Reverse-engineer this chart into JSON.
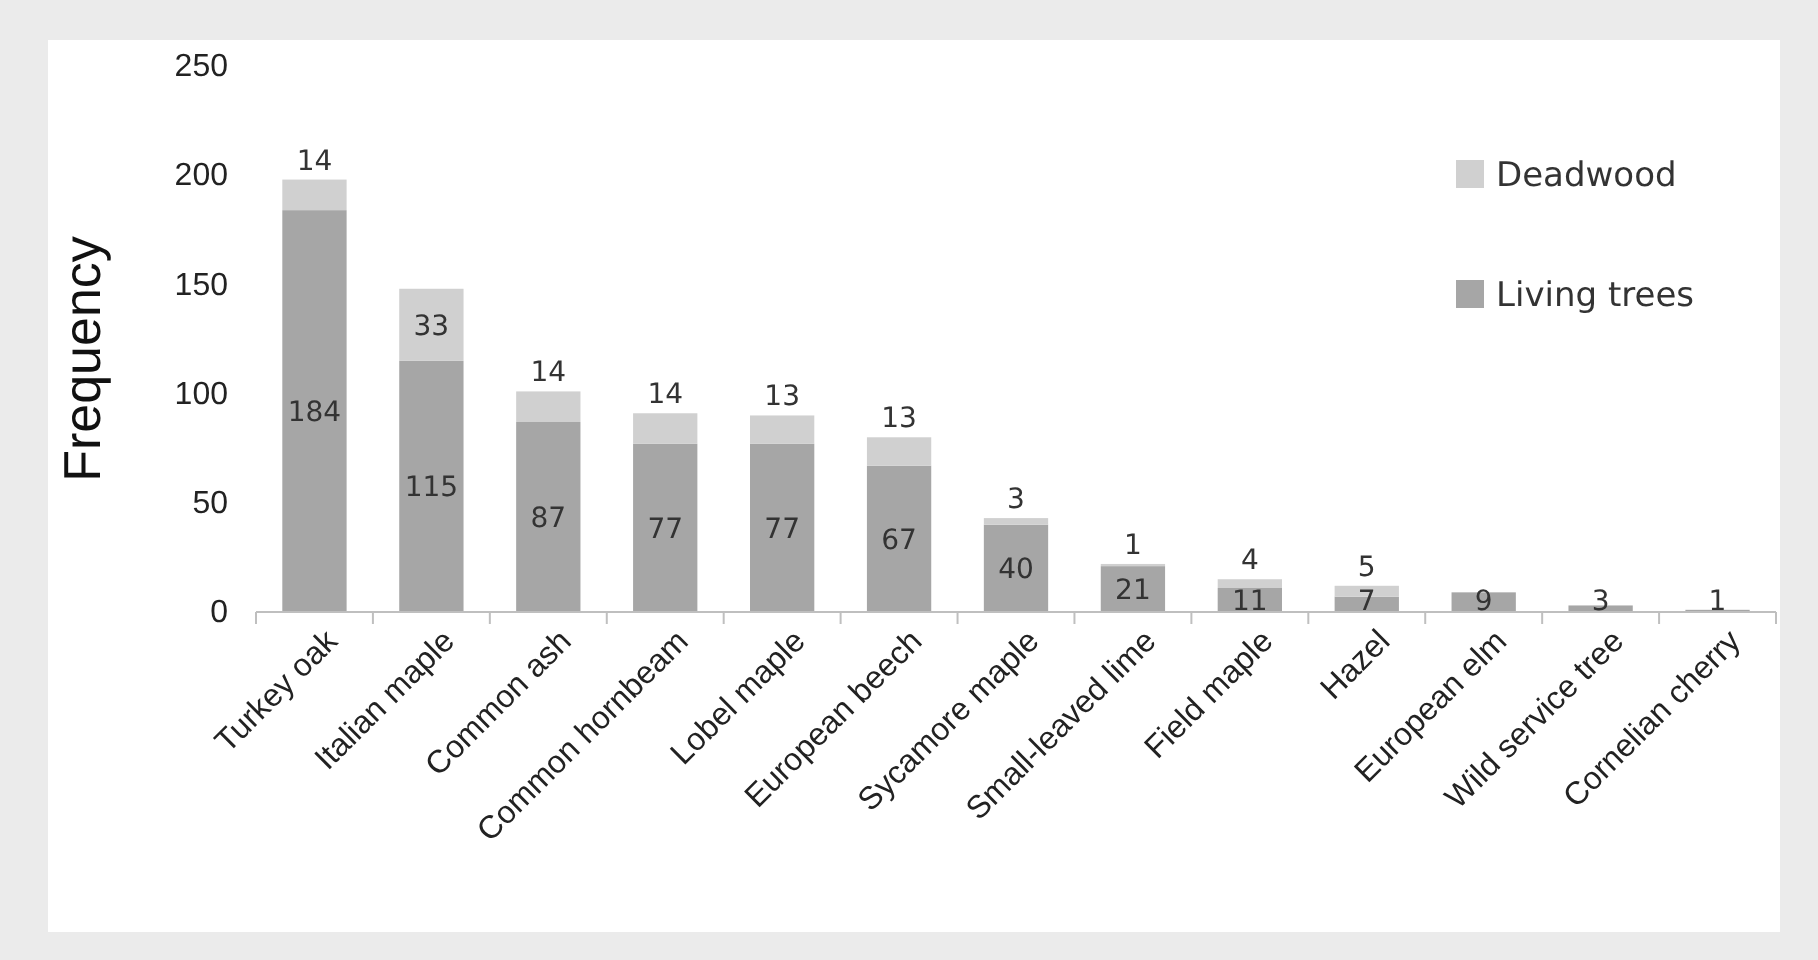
{
  "chart_data": {
    "type": "bar",
    "stacked": true,
    "ylabel": "Frequency",
    "categories": [
      "Turkey oak",
      "Italian maple",
      "Common ash",
      "Common hornbeam",
      "Lobel maple",
      "European beech",
      "Sycamore maple",
      "Small-leaved lime",
      "Field maple",
      "Hazel",
      "European elm",
      "Wild service tree",
      "Cornelian cherry"
    ],
    "series": [
      {
        "name": "Living trees",
        "color": "#a6a6a6",
        "values": [
          184,
          115,
          87,
          77,
          77,
          67,
          40,
          21,
          11,
          7,
          9,
          3,
          1
        ]
      },
      {
        "name": "Deadwood",
        "color": "#d0d0d0",
        "values": [
          14,
          33,
          14,
          14,
          13,
          13,
          3,
          1,
          4,
          5,
          null,
          null,
          null
        ]
      }
    ],
    "ylim": [
      0,
      250
    ],
    "yticks": [
      0,
      50,
      100,
      150,
      200,
      250
    ],
    "grid": false,
    "legend": "top right",
    "data_labels": true
  }
}
